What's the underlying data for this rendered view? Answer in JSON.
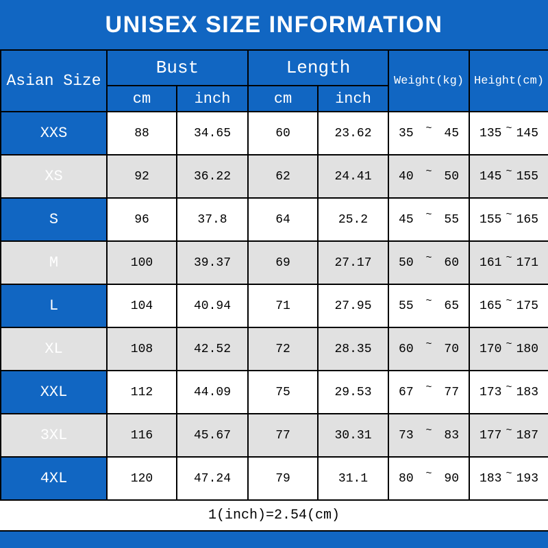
{
  "title": "UNISEX SIZE INFORMATION",
  "footnote": "1(inch)=2.54(cm)",
  "colors": {
    "primary_blue": "#1166c2",
    "alt_row": "#e1e1e1",
    "border": "#000000",
    "header_text": "#ffffff",
    "body_text": "#000000"
  },
  "table": {
    "corner_header": "Asian Size",
    "range_separator": "~",
    "groups": [
      {
        "label": "Bust",
        "subs": [
          "cm",
          "inch"
        ]
      },
      {
        "label": "Length",
        "subs": [
          "cm",
          "inch"
        ]
      }
    ],
    "span_headers": [
      "Weight(kg)",
      "Height(cm)"
    ],
    "rows": [
      {
        "size": "XXS",
        "bust_cm": "88",
        "bust_inch": "34.65",
        "length_cm": "60",
        "length_inch": "23.62",
        "weight_min": "35",
        "weight_max": "45",
        "height_min": "135",
        "height_max": "145"
      },
      {
        "size": "XS",
        "bust_cm": "92",
        "bust_inch": "36.22",
        "length_cm": "62",
        "length_inch": "24.41",
        "weight_min": "40",
        "weight_max": "50",
        "height_min": "145",
        "height_max": "155"
      },
      {
        "size": "S",
        "bust_cm": "96",
        "bust_inch": "37.8",
        "length_cm": "64",
        "length_inch": "25.2",
        "weight_min": "45",
        "weight_max": "55",
        "height_min": "155",
        "height_max": "165"
      },
      {
        "size": "M",
        "bust_cm": "100",
        "bust_inch": "39.37",
        "length_cm": "69",
        "length_inch": "27.17",
        "weight_min": "50",
        "weight_max": "60",
        "height_min": "161",
        "height_max": "171"
      },
      {
        "size": "L",
        "bust_cm": "104",
        "bust_inch": "40.94",
        "length_cm": "71",
        "length_inch": "27.95",
        "weight_min": "55",
        "weight_max": "65",
        "height_min": "165",
        "height_max": "175"
      },
      {
        "size": "XL",
        "bust_cm": "108",
        "bust_inch": "42.52",
        "length_cm": "72",
        "length_inch": "28.35",
        "weight_min": "60",
        "weight_max": "70",
        "height_min": "170",
        "height_max": "180"
      },
      {
        "size": "XXL",
        "bust_cm": "112",
        "bust_inch": "44.09",
        "length_cm": "75",
        "length_inch": "29.53",
        "weight_min": "67",
        "weight_max": "77",
        "height_min": "173",
        "height_max": "183"
      },
      {
        "size": "3XL",
        "bust_cm": "116",
        "bust_inch": "45.67",
        "length_cm": "77",
        "length_inch": "30.31",
        "weight_min": "73",
        "weight_max": "83",
        "height_min": "177",
        "height_max": "187"
      },
      {
        "size": "4XL",
        "bust_cm": "120",
        "bust_inch": "47.24",
        "length_cm": "79",
        "length_inch": "31.1",
        "weight_min": "80",
        "weight_max": "90",
        "height_min": "183",
        "height_max": "193"
      }
    ]
  },
  "chart_data": {
    "type": "table",
    "title": "UNISEX SIZE INFORMATION",
    "columns": [
      "Asian Size",
      "Bust (cm)",
      "Bust (inch)",
      "Length (cm)",
      "Length (inch)",
      "Weight (kg)",
      "Height (cm)"
    ],
    "rows": [
      [
        "XXS",
        "88",
        "34.65",
        "60",
        "23.62",
        "35~45",
        "135~145"
      ],
      [
        "XS",
        "92",
        "36.22",
        "62",
        "24.41",
        "40~50",
        "145~155"
      ],
      [
        "S",
        "96",
        "37.8",
        "64",
        "25.2",
        "45~55",
        "155~165"
      ],
      [
        "M",
        "100",
        "39.37",
        "69",
        "27.17",
        "50~60",
        "161~171"
      ],
      [
        "L",
        "104",
        "40.94",
        "71",
        "27.95",
        "55~65",
        "165~175"
      ],
      [
        "XL",
        "108",
        "42.52",
        "72",
        "28.35",
        "60~70",
        "170~180"
      ],
      [
        "XXL",
        "112",
        "44.09",
        "75",
        "29.53",
        "67~77",
        "173~183"
      ],
      [
        "3XL",
        "116",
        "45.67",
        "77",
        "30.31",
        "73~83",
        "177~187"
      ],
      [
        "4XL",
        "120",
        "47.24",
        "79",
        "31.1",
        "80~90",
        "183~193"
      ]
    ],
    "footnote": "1(inch)=2.54(cm)"
  }
}
